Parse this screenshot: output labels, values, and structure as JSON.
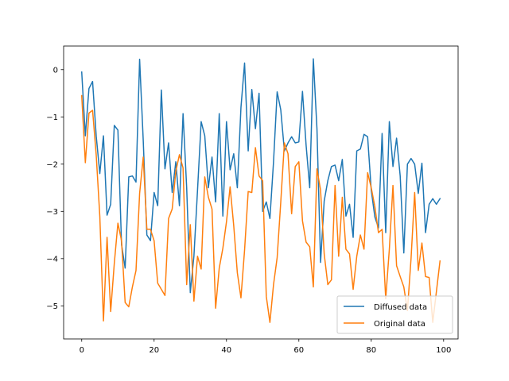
{
  "chart_data": {
    "type": "line",
    "title": "",
    "xlabel": "",
    "ylabel": "",
    "xlim": [
      -5,
      104
    ],
    "ylim": [
      -5.7,
      0.5
    ],
    "xticks": [
      0,
      20,
      40,
      60,
      80,
      100
    ],
    "yticks": [
      0,
      -1,
      -2,
      -3,
      -4,
      -5
    ],
    "grid": false,
    "legend_position": "lower-right",
    "x": [
      0,
      1,
      2,
      3,
      4,
      5,
      6,
      7,
      8,
      9,
      10,
      11,
      12,
      13,
      14,
      15,
      16,
      17,
      18,
      19,
      20,
      21,
      22,
      23,
      24,
      25,
      26,
      27,
      28,
      29,
      30,
      31,
      32,
      33,
      34,
      35,
      36,
      37,
      38,
      39,
      40,
      41,
      42,
      43,
      44,
      45,
      46,
      47,
      48,
      49,
      50,
      51,
      52,
      53,
      54,
      55,
      56,
      57,
      58,
      59,
      60,
      61,
      62,
      63,
      64,
      65,
      66,
      67,
      68,
      69,
      70,
      71,
      72,
      73,
      74,
      75,
      76,
      77,
      78,
      79,
      80,
      81,
      82,
      83,
      84,
      85,
      86,
      87,
      88,
      89,
      90,
      91,
      92,
      93,
      94,
      95,
      96,
      97,
      98,
      99
    ],
    "series": [
      {
        "name": "Diffused data",
        "color": "#1f77b4",
        "values": [
          -0.05,
          -1.4,
          -0.4,
          -0.25,
          -1.4,
          -2.2,
          -1.4,
          -3.08,
          -2.85,
          -1.18,
          -1.28,
          -3.7,
          -4.2,
          -2.27,
          -2.25,
          -2.38,
          0.22,
          -1.5,
          -3.5,
          -3.62,
          -2.6,
          -2.88,
          -0.43,
          -2.1,
          -1.55,
          -2.6,
          -1.95,
          -2.88,
          -0.93,
          -2.5,
          -4.72,
          -3.95,
          -2.55,
          -1.1,
          -1.4,
          -2.5,
          -1.85,
          -2.8,
          -0.93,
          -3.1,
          -1.1,
          -2.12,
          -1.78,
          -2.5,
          -0.8,
          0.14,
          -1.72,
          -0.42,
          -1.25,
          -0.5,
          -3.0,
          -2.8,
          -3.15,
          -1.95,
          -0.47,
          -0.85,
          -1.72,
          -1.55,
          -1.42,
          -1.55,
          -1.53,
          -0.46,
          -1.6,
          -2.5,
          0.23,
          -1.25,
          -4.08,
          -2.78,
          -2.35,
          -2.05,
          -2.02,
          -2.35,
          -1.9,
          -3.1,
          -2.85,
          -3.55,
          -1.72,
          -1.68,
          -1.37,
          -1.42,
          -2.55,
          -3.12,
          -3.35,
          -1.35,
          -3.45,
          -1.1,
          -2.05,
          -1.45,
          -2.25,
          -3.88,
          -2.0,
          -1.88,
          -2.0,
          -2.62,
          -1.98,
          -3.45,
          -2.85,
          -2.73,
          -2.85,
          -2.73
        ]
      },
      {
        "name": "Original data",
        "color": "#ff7f0e",
        "values": [
          -0.55,
          -1.97,
          -0.92,
          -0.86,
          -1.8,
          -3.1,
          -5.32,
          -3.55,
          -5.12,
          -4.1,
          -3.25,
          -3.62,
          -4.93,
          -5.02,
          -4.6,
          -4.25,
          -2.62,
          -1.85,
          -3.38,
          -3.38,
          -3.62,
          -4.52,
          -4.65,
          -4.78,
          -3.15,
          -2.95,
          -2.15,
          -1.8,
          -2.08,
          -4.55,
          -3.28,
          -4.9,
          -3.95,
          -4.22,
          -2.27,
          -2.7,
          -2.95,
          -5.05,
          -4.2,
          -3.78,
          -3.22,
          -2.48,
          -3.3,
          -4.3,
          -4.83,
          -3.82,
          -2.58,
          -2.6,
          -1.65,
          -2.25,
          -2.35,
          -4.8,
          -5.35,
          -4.55,
          -3.98,
          -2.8,
          -1.55,
          -1.78,
          -3.05,
          -2.05,
          -1.95,
          -3.2,
          -3.65,
          -3.75,
          -4.6,
          -2.1,
          -2.55,
          -3.9,
          -4.55,
          -4.45,
          -2.45,
          -3.95,
          -2.7,
          -3.8,
          -3.9,
          -4.65,
          -3.95,
          -3.5,
          -3.8,
          -2.18,
          -2.5,
          -2.9,
          -3.45,
          -3.38,
          -4.85,
          -3.8,
          -2.45,
          -4.15,
          -4.38,
          -4.6,
          -5.1,
          -4.0,
          -2.6,
          -4.25,
          -3.67,
          -4.38,
          -4.4,
          -5.35,
          -4.7,
          -4.05
        ]
      }
    ]
  }
}
